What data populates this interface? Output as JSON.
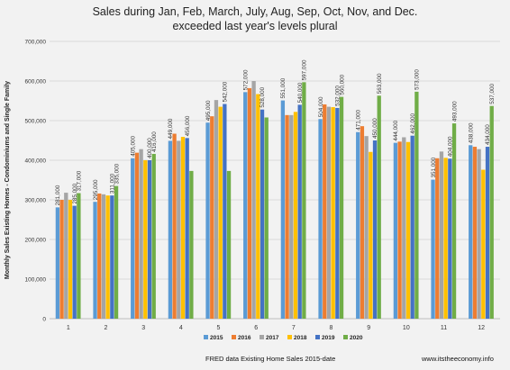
{
  "chart_data": {
    "type": "bar",
    "title_line1": "Sales during Jan, Feb, March, July, Aug, Sep, Oct, Nov, and Dec.",
    "title_line2": "exceeded last year's levels plural",
    "xlabel": "",
    "ylabel": "Monthly Sales Existing Homes - Condominiums and Single Family",
    "ylim": [
      0,
      700000
    ],
    "yticks": [
      "0",
      "100,000",
      "200,000",
      "300,000",
      "400,000",
      "500,000",
      "600,000",
      "700,000"
    ],
    "categories": [
      "1",
      "2",
      "3",
      "4",
      "5",
      "6",
      "7",
      "8",
      "9",
      "10",
      "11",
      "12"
    ],
    "grid": true,
    "legend_position": "bottom",
    "series": [
      {
        "name": "2015",
        "color": "#5b9bd5",
        "values": [
          281000,
          295000,
          405000,
          449000,
          495000,
          572000,
          551000,
          504000,
          471000,
          444000,
          351000,
          438000
        ]
      },
      {
        "name": "2016",
        "color": "#ed7d31",
        "values": [
          300000,
          316000,
          419000,
          467000,
          511000,
          582000,
          514000,
          541000,
          486000,
          447000,
          405000,
          434000
        ]
      },
      {
        "name": "2017",
        "color": "#a5a5a5",
        "values": [
          318000,
          314000,
          428000,
          449000,
          552000,
          600000,
          514000,
          535000,
          461000,
          458000,
          422000,
          428000
        ]
      },
      {
        "name": "2018",
        "color": "#ffc000",
        "values": [
          300000,
          311000,
          400000,
          459000,
          535000,
          567000,
          522000,
          534000,
          421000,
          446000,
          406000,
          376000
        ]
      },
      {
        "name": "2019",
        "color": "#4472c4",
        "values": [
          285000,
          311000,
          400000,
          456000,
          542000,
          528000,
          540000,
          532000,
          450000,
          462000,
          404000,
          434000
        ]
      },
      {
        "name": "2020",
        "color": "#70ad47",
        "values": [
          317000,
          335000,
          416000,
          373000,
          373000,
          508000,
          597000,
          560000,
          563000,
          573000,
          493000,
          537000
        ]
      }
    ],
    "data_labels": [
      {
        "category": "1",
        "series": "2015",
        "text": "281,000"
      },
      {
        "category": "1",
        "series": "2019",
        "text": "285,000"
      },
      {
        "category": "1",
        "series": "2020",
        "text": "317,000"
      },
      {
        "category": "2",
        "series": "2015",
        "text": "295,000"
      },
      {
        "category": "2",
        "series": "2019",
        "text": "311,000"
      },
      {
        "category": "2",
        "series": "2020",
        "text": "335,000"
      },
      {
        "category": "3",
        "series": "2015",
        "text": "405,000"
      },
      {
        "category": "3",
        "series": "2019",
        "text": "400,000"
      },
      {
        "category": "3",
        "series": "2020",
        "text": "416,000"
      },
      {
        "category": "4",
        "series": "2015",
        "text": "449,000"
      },
      {
        "category": "4",
        "series": "2019",
        "text": "456,000"
      },
      {
        "category": "5",
        "series": "2015",
        "text": "495,000"
      },
      {
        "category": "5",
        "series": "2019",
        "text": "542,000"
      },
      {
        "category": "6",
        "series": "2015",
        "text": "572,000"
      },
      {
        "category": "6",
        "series": "2019",
        "text": "528,000"
      },
      {
        "category": "7",
        "series": "2015",
        "text": "551,000"
      },
      {
        "category": "7",
        "series": "2019",
        "text": "540,000"
      },
      {
        "category": "7",
        "series": "2020",
        "text": "597,000"
      },
      {
        "category": "8",
        "series": "2015",
        "text": "504,000"
      },
      {
        "category": "8",
        "series": "2019",
        "text": "532,000"
      },
      {
        "category": "8",
        "series": "2020",
        "text": "560,000"
      },
      {
        "category": "9",
        "series": "2015",
        "text": "471,000"
      },
      {
        "category": "9",
        "series": "2019",
        "text": "450,000"
      },
      {
        "category": "9",
        "series": "2020",
        "text": "563,000"
      },
      {
        "category": "10",
        "series": "2015",
        "text": "444,000"
      },
      {
        "category": "10",
        "series": "2019",
        "text": "462,000"
      },
      {
        "category": "10",
        "series": "2020",
        "text": "573,000"
      },
      {
        "category": "11",
        "series": "2015",
        "text": "351,000"
      },
      {
        "category": "11",
        "series": "2019",
        "text": "404,000"
      },
      {
        "category": "11",
        "series": "2020",
        "text": "493,000"
      },
      {
        "category": "12",
        "series": "2015",
        "text": "438,000"
      },
      {
        "category": "12",
        "series": "2019",
        "text": "434,000"
      },
      {
        "category": "12",
        "series": "2020",
        "text": "537,000"
      }
    ]
  },
  "footer": {
    "source": "FRED data Existing Home Sales 2015-date",
    "website": "www.itstheeconomy.info"
  }
}
